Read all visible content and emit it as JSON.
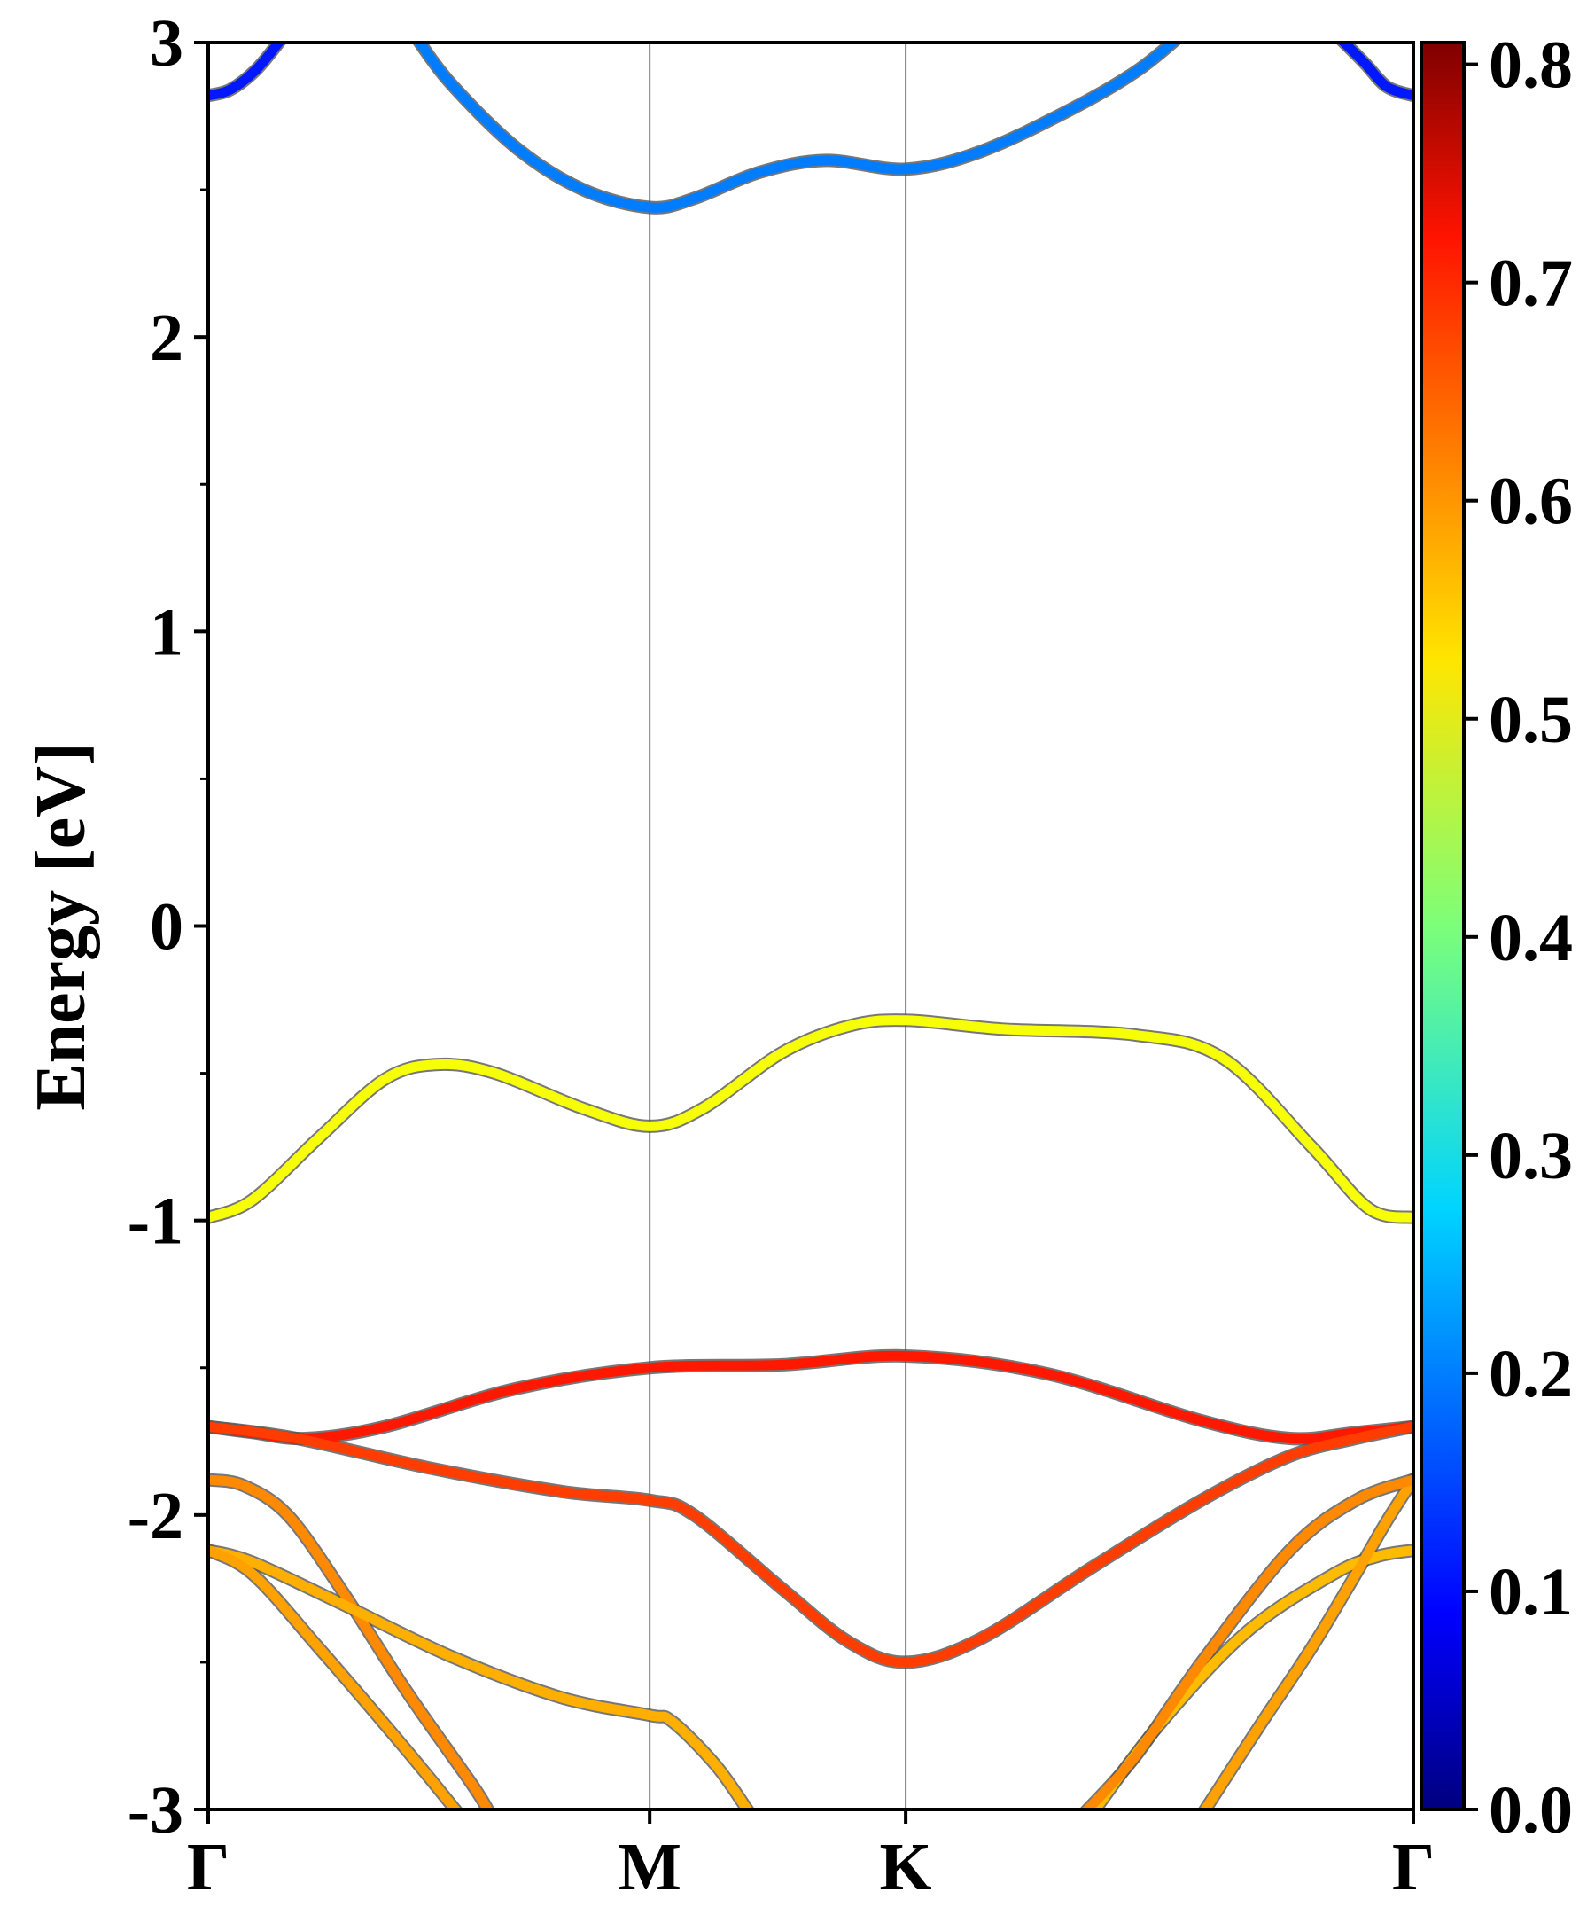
{
  "chart_data": {
    "type": "line",
    "ylabel": "Energy [eV]",
    "ylim": [
      -3,
      3
    ],
    "yticks": [
      "3",
      "2",
      "1",
      "0",
      "-1",
      "-2",
      "-3"
    ],
    "yticks_values": [
      3,
      2,
      1,
      0,
      -1,
      -2,
      -3
    ],
    "kpoints": [
      {
        "label": "Γ",
        "x": 0
      },
      {
        "label": "M",
        "x": 1.0
      },
      {
        "label": "K",
        "x": 1.58
      },
      {
        "label": "Γ",
        "x": 2.73
      }
    ],
    "xlim": [
      0,
      2.73
    ],
    "colorbar": {
      "min": 0.0,
      "max": 0.81,
      "ticks": [
        "0.0",
        "0.1",
        "0.2",
        "0.3",
        "0.4",
        "0.5",
        "0.6",
        "0.7",
        "0.8"
      ],
      "ticks_values": [
        0.0,
        0.1,
        0.2,
        0.3,
        0.4,
        0.5,
        0.6,
        0.7,
        0.8
      ],
      "colormap": "jet"
    },
    "series": [
      {
        "points": [
          [
            0,
            2.82
          ],
          [
            0.05,
            2.84
          ],
          [
            0.11,
            2.91
          ],
          [
            0.17,
            3.02
          ]
        ],
        "weight": 0.12
      },
      {
        "points": [
          [
            0.47,
            3.02
          ],
          [
            0.55,
            2.86
          ],
          [
            0.7,
            2.64
          ],
          [
            0.85,
            2.5
          ],
          [
            1.0,
            2.44
          ],
          [
            1.1,
            2.47
          ],
          [
            1.25,
            2.56
          ],
          [
            1.4,
            2.6
          ],
          [
            1.58,
            2.57
          ],
          [
            1.75,
            2.63
          ],
          [
            1.95,
            2.77
          ],
          [
            2.1,
            2.9
          ],
          [
            2.2,
            3.02
          ]
        ],
        "weight": 0.2
      },
      {
        "points": [
          [
            2.56,
            3.02
          ],
          [
            2.62,
            2.93
          ],
          [
            2.67,
            2.85
          ],
          [
            2.73,
            2.82
          ]
        ],
        "weight": 0.12
      },
      {
        "points": [
          [
            0,
            -0.99
          ],
          [
            0.1,
            -0.93
          ],
          [
            0.25,
            -0.72
          ],
          [
            0.4,
            -0.52
          ],
          [
            0.52,
            -0.47
          ],
          [
            0.65,
            -0.5
          ],
          [
            0.85,
            -0.62
          ],
          [
            1.0,
            -0.68
          ],
          [
            1.12,
            -0.62
          ],
          [
            1.3,
            -0.43
          ],
          [
            1.45,
            -0.34
          ],
          [
            1.58,
            -0.32
          ],
          [
            1.8,
            -0.35
          ],
          [
            2.1,
            -0.37
          ],
          [
            2.3,
            -0.45
          ],
          [
            2.5,
            -0.75
          ],
          [
            2.63,
            -0.96
          ],
          [
            2.73,
            -0.99
          ]
        ],
        "weight": 0.5
      },
      {
        "points": [
          [
            0,
            -1.7
          ],
          [
            0.1,
            -1.72
          ],
          [
            0.22,
            -1.74
          ],
          [
            0.4,
            -1.7
          ],
          [
            0.7,
            -1.57
          ],
          [
            1.0,
            -1.5
          ],
          [
            1.3,
            -1.49
          ],
          [
            1.58,
            -1.46
          ],
          [
            1.9,
            -1.52
          ],
          [
            2.25,
            -1.68
          ],
          [
            2.45,
            -1.74
          ],
          [
            2.6,
            -1.72
          ],
          [
            2.73,
            -1.7
          ]
        ],
        "weight": 0.69
      },
      {
        "points": [
          [
            0,
            -1.7
          ],
          [
            0.2,
            -1.74
          ],
          [
            0.5,
            -1.84
          ],
          [
            0.8,
            -1.92
          ],
          [
            1.0,
            -1.95
          ],
          [
            1.1,
            -2.0
          ],
          [
            1.3,
            -2.25
          ],
          [
            1.45,
            -2.43
          ],
          [
            1.58,
            -2.5
          ],
          [
            1.75,
            -2.42
          ],
          [
            2.0,
            -2.18
          ],
          [
            2.25,
            -1.95
          ],
          [
            2.45,
            -1.8
          ],
          [
            2.6,
            -1.74
          ],
          [
            2.73,
            -1.7
          ]
        ],
        "weight": 0.66
      },
      {
        "points": [
          [
            0,
            -1.88
          ],
          [
            0.08,
            -1.9
          ],
          [
            0.18,
            -2.0
          ],
          [
            0.3,
            -2.25
          ],
          [
            0.45,
            -2.6
          ],
          [
            0.6,
            -2.92
          ],
          [
            0.64,
            -3.02
          ]
        ],
        "weight": 0.6
      },
      {
        "points": [
          [
            0,
            -2.12
          ],
          [
            0.1,
            -2.16
          ],
          [
            0.3,
            -2.3
          ],
          [
            0.55,
            -2.48
          ],
          [
            0.8,
            -2.62
          ],
          [
            1.0,
            -2.68
          ],
          [
            1.05,
            -2.7
          ],
          [
            1.15,
            -2.85
          ],
          [
            1.23,
            -3.02
          ]
        ],
        "weight": 0.57
      },
      {
        "points": [
          [
            0,
            -2.12
          ],
          [
            0.1,
            -2.2
          ],
          [
            0.25,
            -2.45
          ],
          [
            0.45,
            -2.8
          ],
          [
            0.57,
            -3.02
          ]
        ],
        "weight": 0.58
      },
      {
        "points": [
          [
            2.0,
            -3.02
          ],
          [
            2.15,
            -2.72
          ],
          [
            2.35,
            -2.4
          ],
          [
            2.55,
            -2.2
          ],
          [
            2.65,
            -2.14
          ],
          [
            2.73,
            -2.12
          ]
        ],
        "weight": 0.56
      },
      {
        "points": [
          [
            2.25,
            -3.02
          ],
          [
            2.38,
            -2.72
          ],
          [
            2.5,
            -2.45
          ],
          [
            2.6,
            -2.2
          ],
          [
            2.67,
            -2.02
          ],
          [
            2.73,
            -1.88
          ]
        ],
        "weight": 0.58
      },
      {
        "points": [
          [
            1.98,
            -3.02
          ],
          [
            2.1,
            -2.82
          ],
          [
            2.25,
            -2.5
          ],
          [
            2.45,
            -2.12
          ],
          [
            2.6,
            -1.95
          ],
          [
            2.73,
            -1.88
          ]
        ],
        "weight": 0.6
      }
    ]
  }
}
